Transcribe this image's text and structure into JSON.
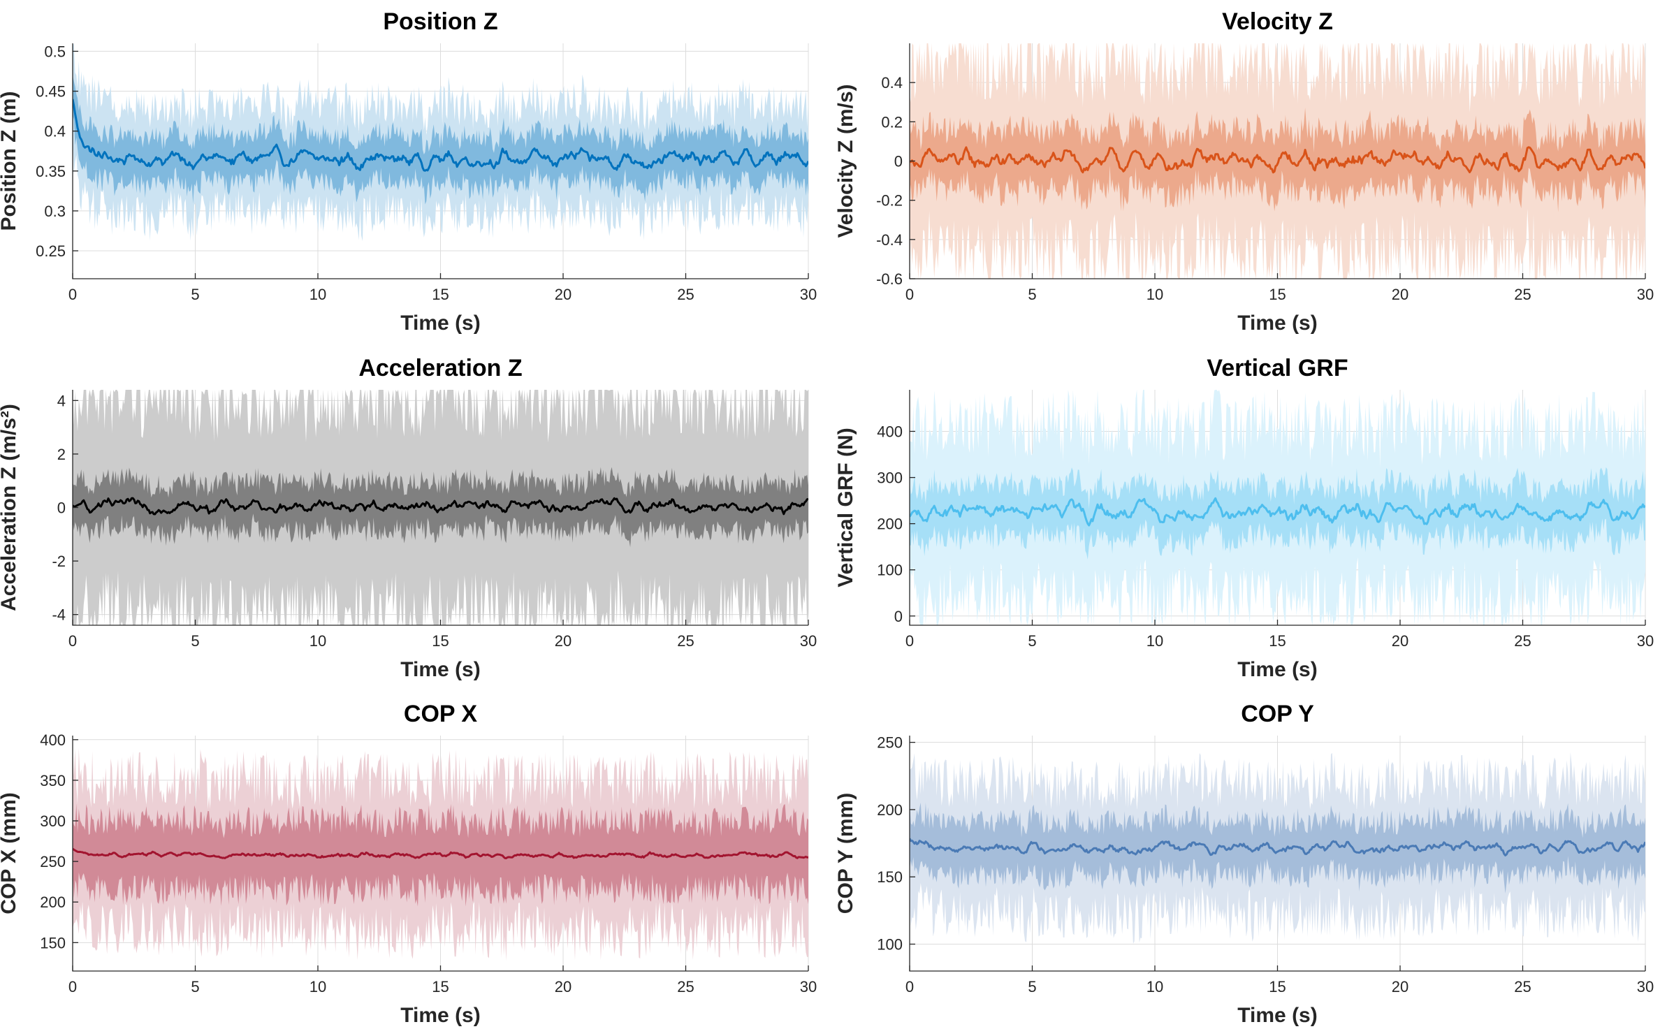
{
  "chart_data": [
    {
      "type": "line",
      "title": "Position Z",
      "xlabel": "Time (s)",
      "ylabel": "Position Z (m)",
      "xlim": [
        0,
        30
      ],
      "ylim": [
        0.215,
        0.51
      ],
      "xticks": [
        0,
        5,
        10,
        15,
        20,
        25,
        30
      ],
      "yticks": [
        0.25,
        0.3,
        0.35,
        0.4,
        0.45,
        0.5
      ],
      "ytick_labels": [
        "0.25",
        "0.3",
        "0.35",
        "0.4",
        "0.45",
        "0.5"
      ],
      "grid": true,
      "color": "#0072bd",
      "series": [
        {
          "name": "mean",
          "mean": 0.365,
          "start": 0.44,
          "amplitude": 0.018,
          "inner_band": 0.03,
          "outer_band": 0.07
        }
      ]
    },
    {
      "type": "line",
      "title": "Velocity Z",
      "xlabel": "Time (s)",
      "ylabel": "Velocity Z (m/s)",
      "xlim": [
        0,
        30
      ],
      "ylim": [
        -0.6,
        0.6
      ],
      "xticks": [
        0,
        5,
        10,
        15,
        20,
        25,
        30
      ],
      "yticks": [
        -0.6,
        -0.4,
        -0.2,
        0,
        0.2,
        0.4
      ],
      "ytick_labels": [
        "-0.6",
        "-0.4",
        "-0.2",
        "0",
        "0.2",
        "0.4"
      ],
      "grid": true,
      "color": "#d95319",
      "series": [
        {
          "name": "mean",
          "mean": 0.0,
          "start": 0.0,
          "amplitude": 0.07,
          "inner_band": 0.15,
          "outer_band": 0.5
        }
      ]
    },
    {
      "type": "line",
      "title": "Acceleration Z",
      "xlabel": "Time (s)",
      "ylabel": "Acceleration Z (m/s²)",
      "xlim": [
        0,
        30
      ],
      "ylim": [
        -4.4,
        4.4
      ],
      "xticks": [
        0,
        5,
        10,
        15,
        20,
        25,
        30
      ],
      "yticks": [
        -4,
        -2,
        0,
        2,
        4
      ],
      "ytick_labels": [
        "-4",
        "-2",
        "0",
        "2",
        "4"
      ],
      "grid": true,
      "color": "#000000",
      "series": [
        {
          "name": "mean",
          "mean": 0.05,
          "start": 0.0,
          "amplitude": 0.3,
          "inner_band": 0.9,
          "outer_band": 4.2
        }
      ]
    },
    {
      "type": "line",
      "title": "Vertical GRF",
      "xlabel": "Time (s)",
      "ylabel": "Vertical GRF (N)",
      "xlim": [
        0,
        30
      ],
      "ylim": [
        -20,
        490
      ],
      "xticks": [
        0,
        5,
        10,
        15,
        20,
        25,
        30
      ],
      "yticks": [
        0,
        100,
        200,
        300,
        400
      ],
      "ytick_labels": [
        "0",
        "100",
        "200",
        "300",
        "400"
      ],
      "grid": true,
      "color": "#4dbeee",
      "series": [
        {
          "name": "mean",
          "mean": 225,
          "start": 210,
          "amplitude": 30,
          "inner_band": 55,
          "outer_band": 190
        }
      ]
    },
    {
      "type": "line",
      "title": "COP X",
      "xlabel": "Time (s)",
      "ylabel": "COP X (mm)",
      "xlim": [
        0,
        30
      ],
      "ylim": [
        115,
        405
      ],
      "xticks": [
        0,
        5,
        10,
        15,
        20,
        25,
        30
      ],
      "yticks": [
        150,
        200,
        250,
        300,
        350,
        400
      ],
      "ytick_labels": [
        "150",
        "200",
        "250",
        "300",
        "350",
        "400"
      ],
      "grid": true,
      "color": "#a2142f",
      "series": [
        {
          "name": "mean",
          "mean": 258,
          "start": 265,
          "amplitude": 4,
          "inner_band": 42,
          "outer_band": 95
        }
      ]
    },
    {
      "type": "line",
      "title": "COP Y",
      "xlabel": "Time (s)",
      "ylabel": "COP Y (mm)",
      "xlim": [
        0,
        30
      ],
      "ylim": [
        80,
        255
      ],
      "xticks": [
        0,
        5,
        10,
        15,
        20,
        25,
        30
      ],
      "yticks": [
        100,
        150,
        200,
        250
      ],
      "ytick_labels": [
        "100",
        "150",
        "200",
        "250"
      ],
      "grid": true,
      "color": "#4a7ab5",
      "series": [
        {
          "name": "mean",
          "mean": 172,
          "start": 178,
          "amplitude": 6,
          "inner_band": 20,
          "outer_band": 50
        }
      ]
    }
  ]
}
